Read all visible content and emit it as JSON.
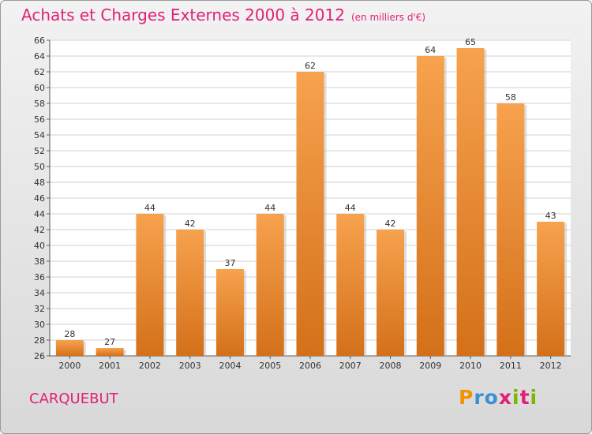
{
  "header": {
    "title": "Achats et Charges Externes 2000 à 2012",
    "unit": "(en milliers d'€)"
  },
  "footer": {
    "commune": "CARQUEBUT",
    "brand": "Proxiti"
  },
  "colors": {
    "title": "#e0207a",
    "bar_top": "#f7a24e",
    "bar_bottom": "#d4701a",
    "brand_letters": [
      "#f29400",
      "#3a8fd6",
      "#3a8fd6",
      "#e0207a",
      "#7ab800",
      "#e0207a",
      "#7ab800"
    ]
  },
  "chart_data": {
    "type": "bar",
    "categories": [
      "2000",
      "2001",
      "2002",
      "2003",
      "2004",
      "2005",
      "2006",
      "2007",
      "2008",
      "2009",
      "2010",
      "2011",
      "2012"
    ],
    "values": [
      28,
      27,
      44,
      42,
      37,
      44,
      62,
      44,
      42,
      64,
      65,
      58,
      43
    ],
    "ylim": [
      26,
      66
    ],
    "yticks": [
      26,
      28,
      30,
      32,
      34,
      36,
      38,
      40,
      42,
      44,
      46,
      48,
      50,
      52,
      54,
      56,
      58,
      60,
      62,
      64,
      66
    ],
    "grid": true,
    "data_labels": true
  }
}
